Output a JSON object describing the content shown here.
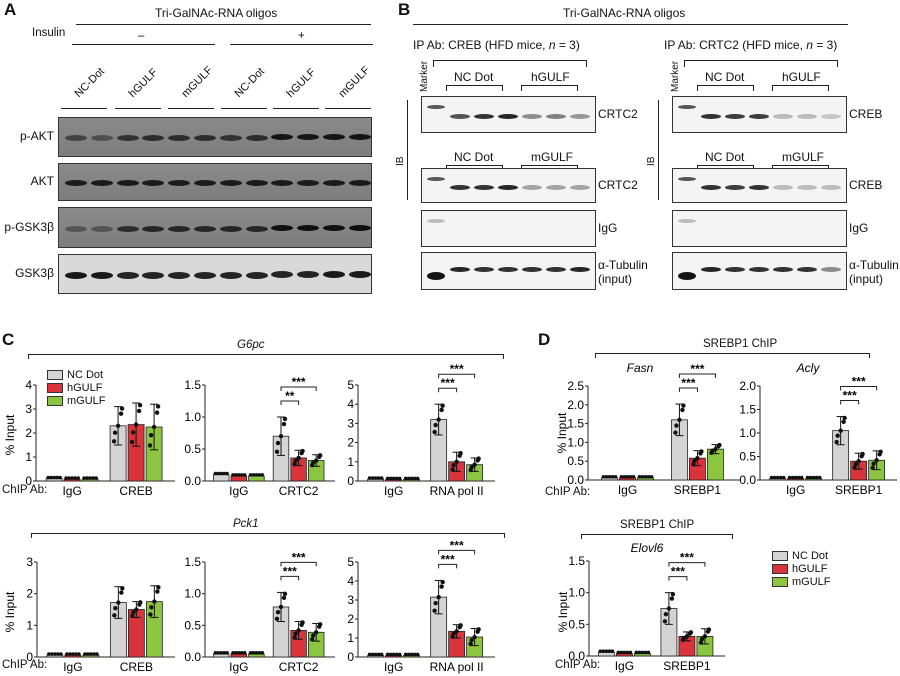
{
  "panels": {
    "a": "A",
    "b": "B",
    "c": "C",
    "d": "D"
  },
  "colors": {
    "nc_dot": "#d4d4d4",
    "hgulf": "#d9333b",
    "mgulf": "#8cc540"
  },
  "panel_a": {
    "title": "Tri-GalNAc-RNA oligos",
    "insulin_label": "Insulin",
    "insulin_minus": "–",
    "insulin_plus": "+",
    "lanes": [
      "NC-Dot",
      "hGULF",
      "mGULF",
      "NC-Dot",
      "hGULF",
      "mGULF"
    ],
    "blots": [
      "p-AKT",
      "AKT",
      "p-GSK3β",
      "GSK3β"
    ]
  },
  "panel_b": {
    "title": "Tri-GalNAc-RNA oligos",
    "left": {
      "header_prefix": "IP Ab: CREB (HFD mice, ",
      "header_n": "n",
      "header_suffix": " = 3)",
      "marker": "Marker",
      "ib": "IB",
      "group1": [
        "NC Dot",
        "hGULF"
      ],
      "group2": [
        "NC Dot",
        "mGULF"
      ],
      "blot_labels": [
        "CRTC2",
        "CRTC2",
        "IgG"
      ],
      "tubulin": "α-Tubulin",
      "input": "(input)"
    },
    "right": {
      "header_prefix": "IP Ab: CRTC2 (HFD mice, ",
      "header_n": "n",
      "header_suffix": " = 3)",
      "marker": "Marker",
      "ib": "IB",
      "group1": [
        "NC Dot",
        "hGULF"
      ],
      "group2": [
        "NC Dot",
        "mGULF"
      ],
      "blot_labels": [
        "CREB",
        "CREB",
        "IgG"
      ],
      "tubulin": "α-Tubulin",
      "input": "(input)"
    }
  },
  "panel_c": {
    "gene_top": "G6pc",
    "gene_bottom": "Pck1",
    "chip_ab": "ChIP Ab:",
    "ylabel": "% Input"
  },
  "panel_d": {
    "title_top": "SREBP1 ChIP",
    "title_bottom": "SREBP1 ChIP",
    "chip_ab": "ChIP Ab:",
    "ylabel": "% Input"
  },
  "legend": [
    "NC Dot",
    "hGULF",
    "mGULF"
  ],
  "chart_data": [
    {
      "id": "c_g6pc_creb",
      "type": "bar",
      "gene": "G6pc",
      "ylabel": "% Input",
      "ylim": [
        0,
        4
      ],
      "yticks": [
        "0",
        "1",
        "2",
        "3",
        "4"
      ],
      "categories": [
        "IgG",
        "CREB"
      ],
      "series": [
        {
          "name": "NC Dot",
          "values": [
            0.1,
            2.3
          ],
          "err": [
            0.02,
            0.8
          ]
        },
        {
          "name": "hGULF",
          "values": [
            0.08,
            2.35
          ],
          "err": [
            0.02,
            0.9
          ]
        },
        {
          "name": "mGULF",
          "values": [
            0.08,
            2.25
          ],
          "err": [
            0.02,
            0.95
          ]
        }
      ],
      "sig": []
    },
    {
      "id": "c_g6pc_crtc2",
      "type": "bar",
      "gene": "G6pc",
      "ylim": [
        0,
        1.5
      ],
      "yticks": [
        "0.0",
        "0.5",
        "1.0",
        "1.5"
      ],
      "categories": [
        "IgG",
        "CRTC2"
      ],
      "series": [
        {
          "name": "NC Dot",
          "values": [
            0.1,
            0.7
          ],
          "err": [
            0.02,
            0.3
          ]
        },
        {
          "name": "hGULF",
          "values": [
            0.08,
            0.36
          ],
          "err": [
            0.02,
            0.12
          ]
        },
        {
          "name": "mGULF",
          "values": [
            0.08,
            0.32
          ],
          "err": [
            0.02,
            0.09
          ]
        }
      ],
      "sig": [
        "**",
        "***"
      ]
    },
    {
      "id": "c_g6pc_pol2",
      "type": "bar",
      "gene": "G6pc",
      "ylim": [
        0,
        5
      ],
      "yticks": [
        "0",
        "1",
        "2",
        "3",
        "4",
        "5"
      ],
      "categories": [
        "IgG",
        "RNA pol II"
      ],
      "series": [
        {
          "name": "NC Dot",
          "values": [
            0.1,
            3.2
          ],
          "err": [
            0.02,
            0.8
          ]
        },
        {
          "name": "hGULF",
          "values": [
            0.08,
            1.0
          ],
          "err": [
            0.02,
            0.5
          ]
        },
        {
          "name": "mGULF",
          "values": [
            0.08,
            0.85
          ],
          "err": [
            0.02,
            0.35
          ]
        }
      ],
      "sig": [
        "***",
        "***"
      ]
    },
    {
      "id": "c_pck1_creb",
      "type": "bar",
      "gene": "Pck1",
      "ylabel": "% Input",
      "ylim": [
        0,
        3
      ],
      "yticks": [
        "0",
        "1",
        "2",
        "3"
      ],
      "categories": [
        "IgG",
        "CREB"
      ],
      "series": [
        {
          "name": "NC Dot",
          "values": [
            0.06,
            1.72
          ],
          "err": [
            0.02,
            0.5
          ]
        },
        {
          "name": "hGULF",
          "values": [
            0.06,
            1.5
          ],
          "err": [
            0.02,
            0.25
          ]
        },
        {
          "name": "mGULF",
          "values": [
            0.06,
            1.75
          ],
          "err": [
            0.02,
            0.5
          ]
        }
      ],
      "sig": []
    },
    {
      "id": "c_pck1_crtc2",
      "type": "bar",
      "gene": "Pck1",
      "ylim": [
        0,
        1.5
      ],
      "yticks": [
        "0.0",
        "0.5",
        "1.0",
        "1.5"
      ],
      "categories": [
        "IgG",
        "CRTC2"
      ],
      "series": [
        {
          "name": "NC Dot",
          "values": [
            0.05,
            0.79
          ],
          "err": [
            0.02,
            0.23
          ]
        },
        {
          "name": "hGULF",
          "values": [
            0.05,
            0.42
          ],
          "err": [
            0.02,
            0.14
          ]
        },
        {
          "name": "mGULF",
          "values": [
            0.05,
            0.39
          ],
          "err": [
            0.02,
            0.14
          ]
        }
      ],
      "sig": [
        "***",
        "***"
      ]
    },
    {
      "id": "c_pck1_pol2",
      "type": "bar",
      "gene": "Pck1",
      "ylim": [
        0,
        5
      ],
      "yticks": [
        "0",
        "1",
        "2",
        "3",
        "4",
        "5"
      ],
      "categories": [
        "IgG",
        "RNA pol II"
      ],
      "series": [
        {
          "name": "NC Dot",
          "values": [
            0.08,
            3.15
          ],
          "err": [
            0.02,
            0.88
          ]
        },
        {
          "name": "hGULF",
          "values": [
            0.08,
            1.35
          ],
          "err": [
            0.02,
            0.35
          ]
        },
        {
          "name": "mGULF",
          "values": [
            0.08,
            1.05
          ],
          "err": [
            0.02,
            0.45
          ]
        }
      ],
      "sig": [
        "***",
        "***"
      ]
    },
    {
      "id": "d_fasn",
      "type": "bar",
      "gene": "Fasn",
      "ylabel": "% Input",
      "ylim": [
        0,
        2.5
      ],
      "yticks": [
        "0.0",
        "0.5",
        "1.0",
        "1.5",
        "2.0",
        "2.5"
      ],
      "categories": [
        "IgG",
        "SREBP1"
      ],
      "series": [
        {
          "name": "NC Dot",
          "values": [
            0.06,
            1.6
          ],
          "err": [
            0.02,
            0.42
          ]
        },
        {
          "name": "hGULF",
          "values": [
            0.06,
            0.58
          ],
          "err": [
            0.02,
            0.2
          ]
        },
        {
          "name": "mGULF",
          "values": [
            0.06,
            0.82
          ],
          "err": [
            0.02,
            0.12
          ]
        }
      ],
      "sig": [
        "***",
        "***"
      ]
    },
    {
      "id": "d_acly",
      "type": "bar",
      "gene": "Acly",
      "ylim": [
        0,
        2.0
      ],
      "yticks": [
        "0.0",
        "0.5",
        "1.0",
        "1.5",
        "2.0"
      ],
      "categories": [
        "IgG",
        "SREBP1"
      ],
      "series": [
        {
          "name": "NC Dot",
          "values": [
            0.03,
            1.05
          ],
          "err": [
            0.01,
            0.3
          ]
        },
        {
          "name": "hGULF",
          "values": [
            0.03,
            0.4
          ],
          "err": [
            0.01,
            0.17
          ]
        },
        {
          "name": "mGULF",
          "values": [
            0.03,
            0.42
          ],
          "err": [
            0.01,
            0.2
          ]
        }
      ],
      "sig": [
        "***",
        "***"
      ]
    },
    {
      "id": "d_elovl6",
      "type": "bar",
      "gene": "Elovl6",
      "ylabel": "% Input",
      "ylim": [
        0,
        1.5
      ],
      "yticks": [
        "0.0",
        "0.5",
        "1.0",
        "1.5"
      ],
      "categories": [
        "IgG",
        "SREBP1"
      ],
      "series": [
        {
          "name": "NC Dot",
          "values": [
            0.06,
            0.75
          ],
          "err": [
            0.02,
            0.25
          ]
        },
        {
          "name": "hGULF",
          "values": [
            0.04,
            0.31
          ],
          "err": [
            0.01,
            0.07
          ]
        },
        {
          "name": "mGULF",
          "values": [
            0.04,
            0.31
          ],
          "err": [
            0.01,
            0.12
          ]
        }
      ],
      "sig": [
        "***",
        "***"
      ]
    }
  ]
}
